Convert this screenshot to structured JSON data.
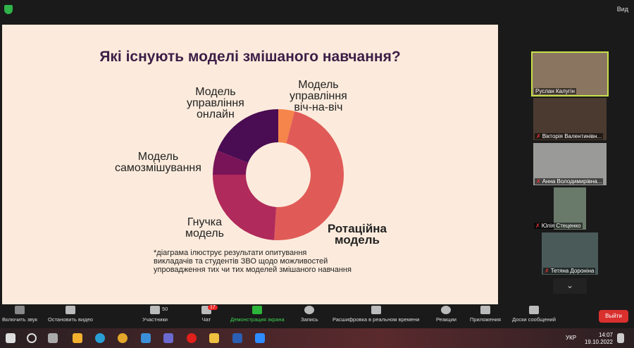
{
  "slide": {
    "title": "Які існують моделі змішаного навчання?",
    "labels": {
      "online": [
        "Модель",
        "управління",
        "онлайн"
      ],
      "face": [
        "Модель",
        "управління",
        "віч-на-віч"
      ],
      "self": [
        "Модель",
        "самозмішування"
      ],
      "flex": [
        "Гнучка",
        "модель"
      ],
      "rotation": [
        "Ротаційна",
        "модель"
      ]
    },
    "note": [
      "*діаграма ілюструє результати опитування",
      "викладачів та студентів ЗВО щодо можливостей",
      "упровадження тих чи тих моделей змішаного навчання"
    ]
  },
  "chart_data": {
    "type": "pie",
    "title": "Які існують моделі змішаного навчання?",
    "categories": [
      "Модель управління віч-на-віч",
      "Ротаційна модель",
      "Гнучка модель",
      "Модель самозмішування",
      "Модель управління онлайн"
    ],
    "values": [
      4,
      47,
      24,
      6,
      19
    ],
    "colors": [
      "#f5854a",
      "#e05b57",
      "#b02a5b",
      "#7a1458",
      "#4a0c52"
    ],
    "donut": true
  },
  "top": {
    "view_label": "Вид"
  },
  "participants": [
    {
      "name": "Руслан Калугін",
      "muted": false
    },
    {
      "name": "Вікторія Валентинівн...",
      "muted": true
    },
    {
      "name": "Анна Володимирівна...",
      "muted": true
    },
    {
      "name": "Юлія Стеценко",
      "muted": true
    },
    {
      "name": "Тетяна Дороніна",
      "muted": true
    }
  ],
  "toolbar": {
    "unmute": "Включить звук",
    "video": "Остановить видео",
    "participants": "Участники",
    "participants_count": "50",
    "chat": "Чат",
    "chat_badge": "17",
    "share": "Демонстрация экрана",
    "record": "Запись",
    "captions": "Расшифровка в реальном времени",
    "reactions": "Реакции",
    "apps": "Приложения",
    "whiteboards": "Доски сообщений",
    "leave": "Выйти"
  },
  "taskbar": {
    "lang": "УКР",
    "time": "14:07",
    "date": "19.10.2022"
  }
}
